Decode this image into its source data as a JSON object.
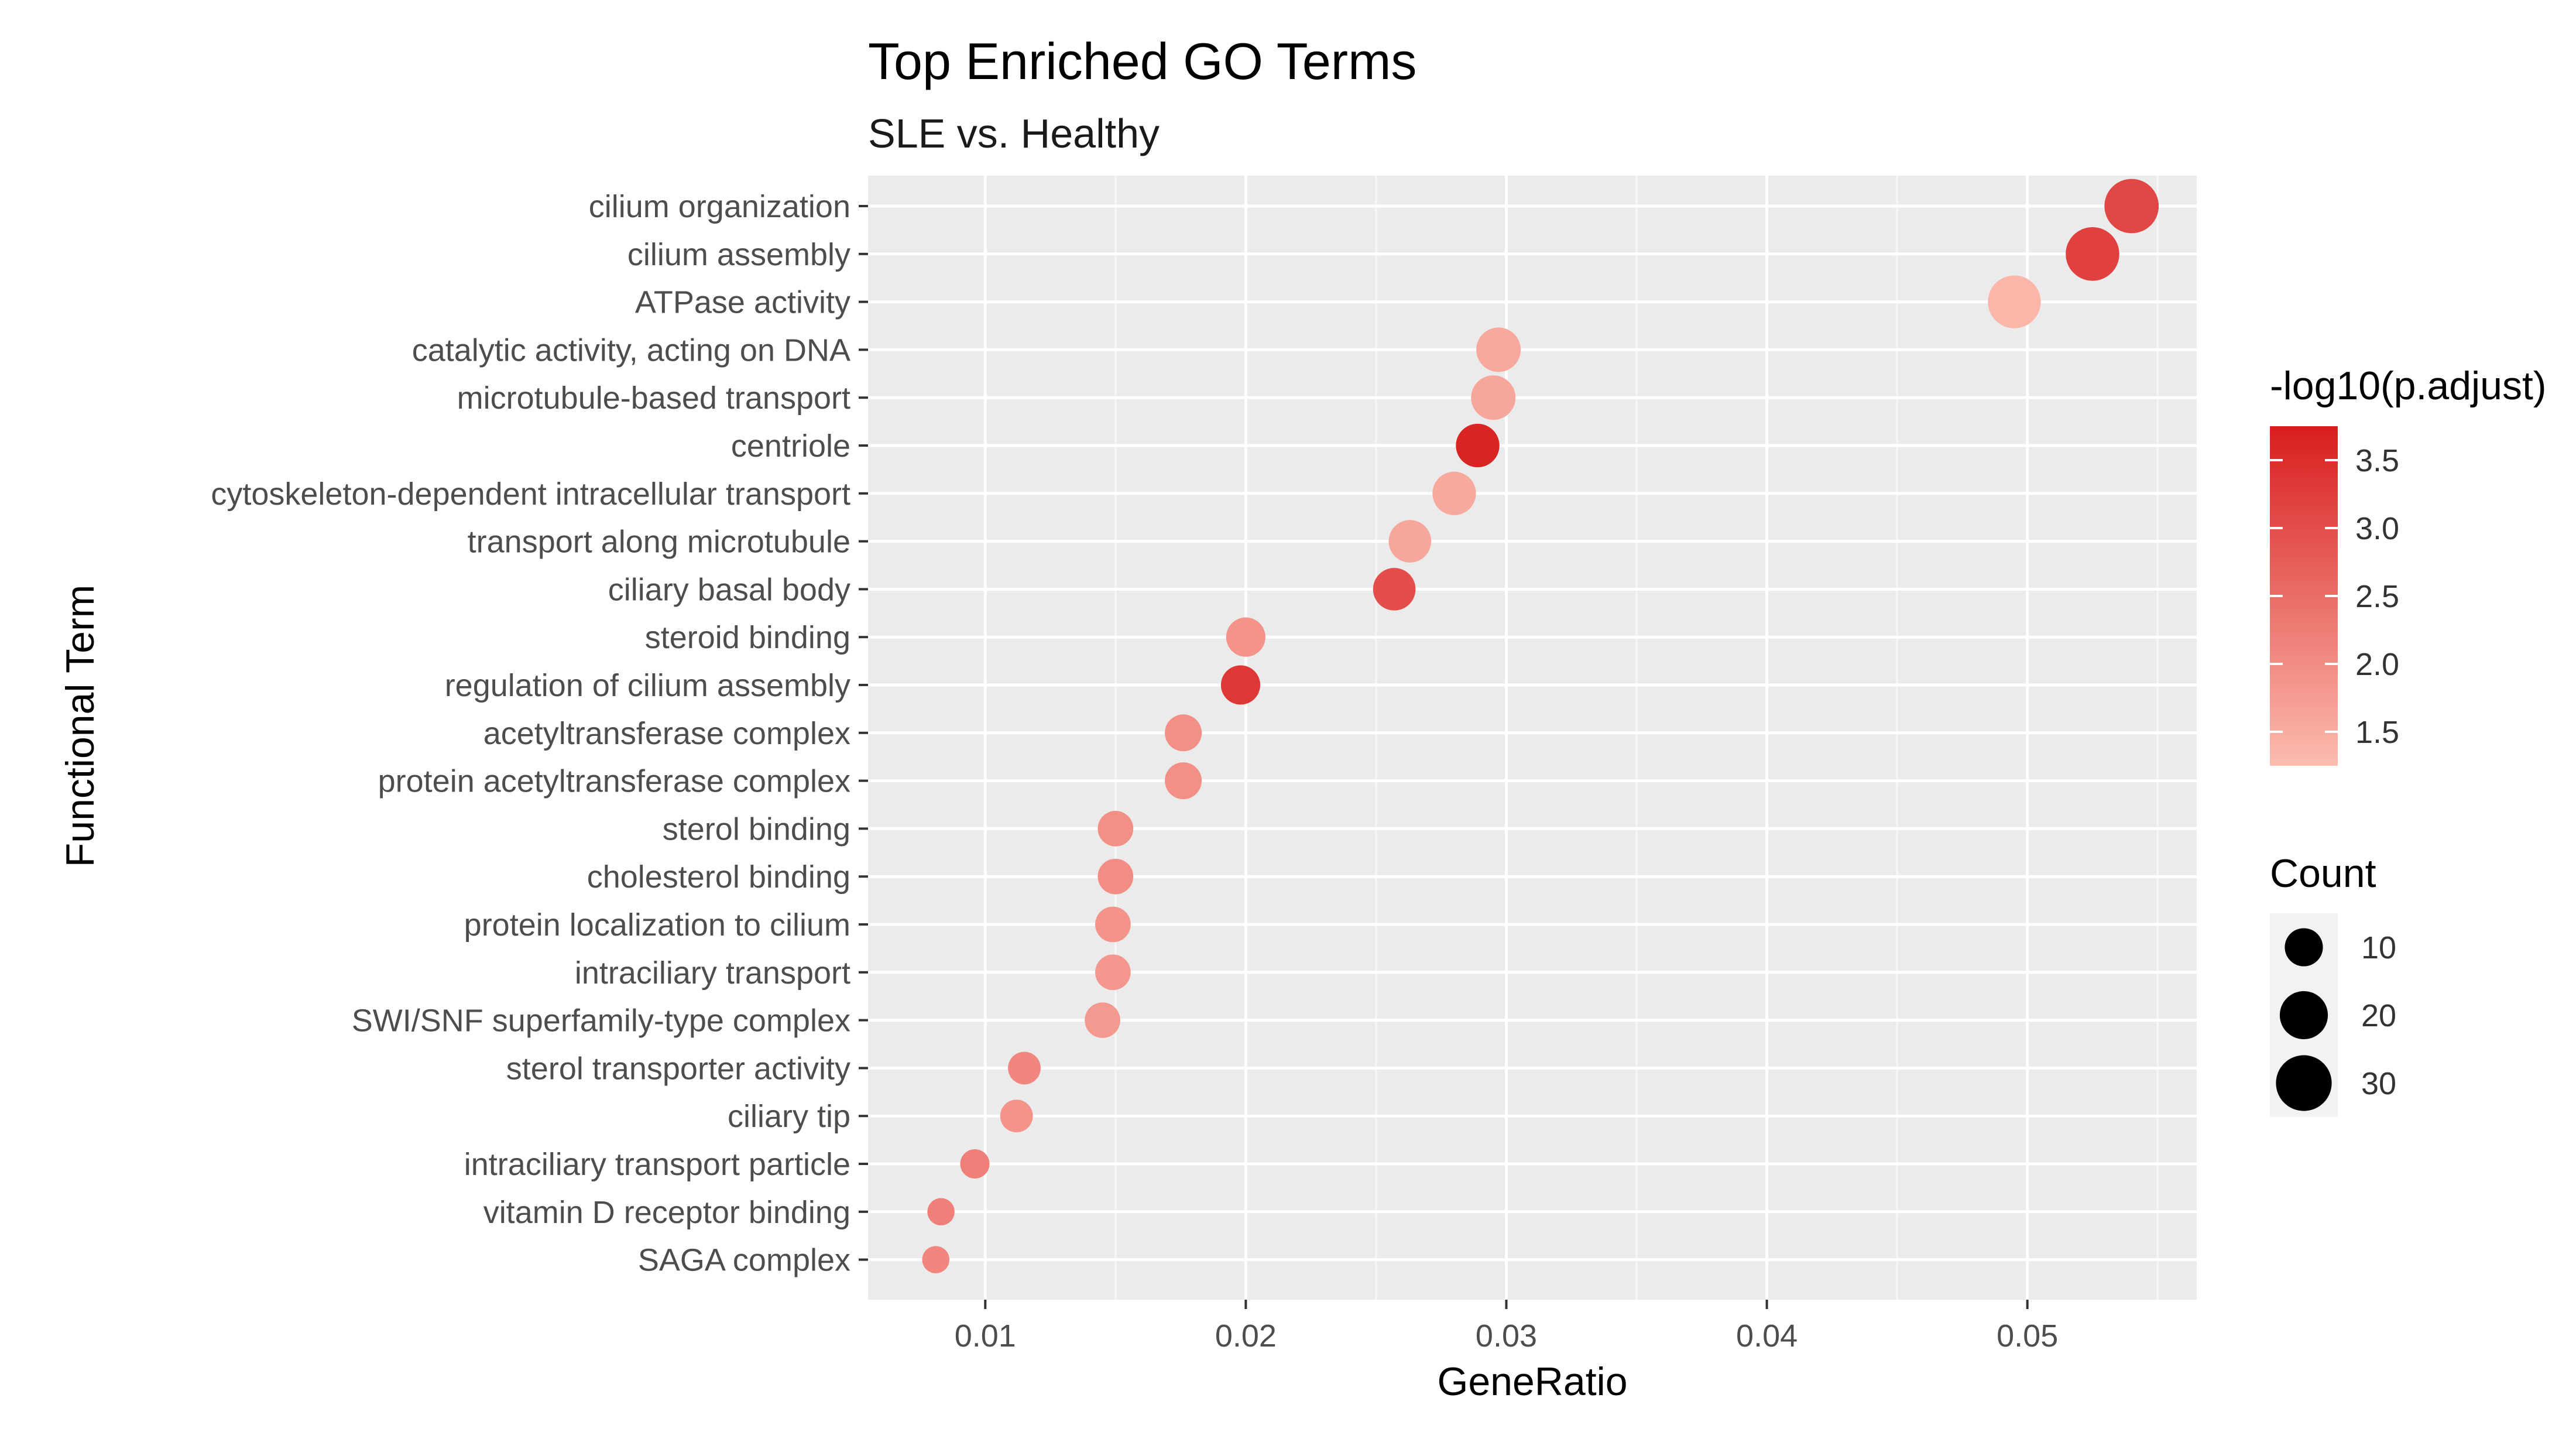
{
  "chart_data": {
    "type": "scatter",
    "title": "Top Enriched GO Terms",
    "subtitle": "SLE vs. Healthy",
    "xlabel": "GeneRatio",
    "ylabel": "Functional Term",
    "xlim": [
      0.0055,
      0.0565
    ],
    "x_ticks": [
      0.01,
      0.02,
      0.03,
      0.04,
      0.05
    ],
    "x_tick_labels": [
      "0.01",
      "0.02",
      "0.03",
      "0.04",
      "0.05"
    ],
    "grid": true,
    "terms": [
      "cilium organization",
      "cilium assembly",
      "ATPase activity",
      "catalytic activity, acting on DNA",
      "microtubule-based transport",
      "centriole",
      "cytoskeleton-dependent intracellular transport",
      "transport along microtubule",
      "ciliary basal body",
      "steroid binding",
      "regulation of cilium assembly",
      "acetyltransferase complex",
      "protein acetyltransferase complex",
      "sterol binding",
      "cholesterol binding",
      "protein localization to cilium",
      "intraciliary transport",
      "SWI/SNF superfamily-type complex",
      "sterol transporter activity",
      "ciliary tip",
      "intraciliary transport particle",
      "vitamin D receptor binding",
      "SAGA complex"
    ],
    "gene_ratio": [
      0.054,
      0.0525,
      0.0495,
      0.0297,
      0.0295,
      0.0289,
      0.028,
      0.0263,
      0.0257,
      0.02,
      0.0198,
      0.0176,
      0.0176,
      0.015,
      0.015,
      0.0149,
      0.0149,
      0.0145,
      0.0115,
      0.0112,
      0.0096,
      0.0083,
      0.0081
    ],
    "count": [
      28,
      27,
      26,
      16,
      16,
      15,
      15,
      14,
      14,
      11,
      11,
      9,
      9,
      8,
      8,
      8,
      8,
      8,
      6,
      6,
      4,
      3,
      3
    ],
    "neg_log10_p_adjust": [
      3.1,
      3.2,
      1.35,
      1.55,
      1.6,
      3.65,
      1.55,
      1.6,
      3.0,
      1.9,
      3.35,
      1.95,
      1.95,
      1.95,
      2.0,
      1.9,
      1.85,
      1.8,
      2.1,
      1.9,
      2.2,
      2.2,
      2.1
    ],
    "color_legend": {
      "title": "-log10(p.adjust)",
      "range": [
        1.25,
        3.75
      ],
      "ticks": [
        1.5,
        2.0,
        2.5,
        3.0,
        3.5
      ],
      "tick_labels": [
        "1.5",
        "2.0",
        "2.5",
        "3.0",
        "3.5"
      ],
      "low_color": "#fcbcb0",
      "high_color": "#d81e1e"
    },
    "size_legend": {
      "title": "Count",
      "values": [
        10,
        20,
        30
      ],
      "labels": [
        "10",
        "20",
        "30"
      ],
      "key_color": "#000000"
    },
    "panel_background": "#ebebeb",
    "grid_color": "#ffffff"
  }
}
